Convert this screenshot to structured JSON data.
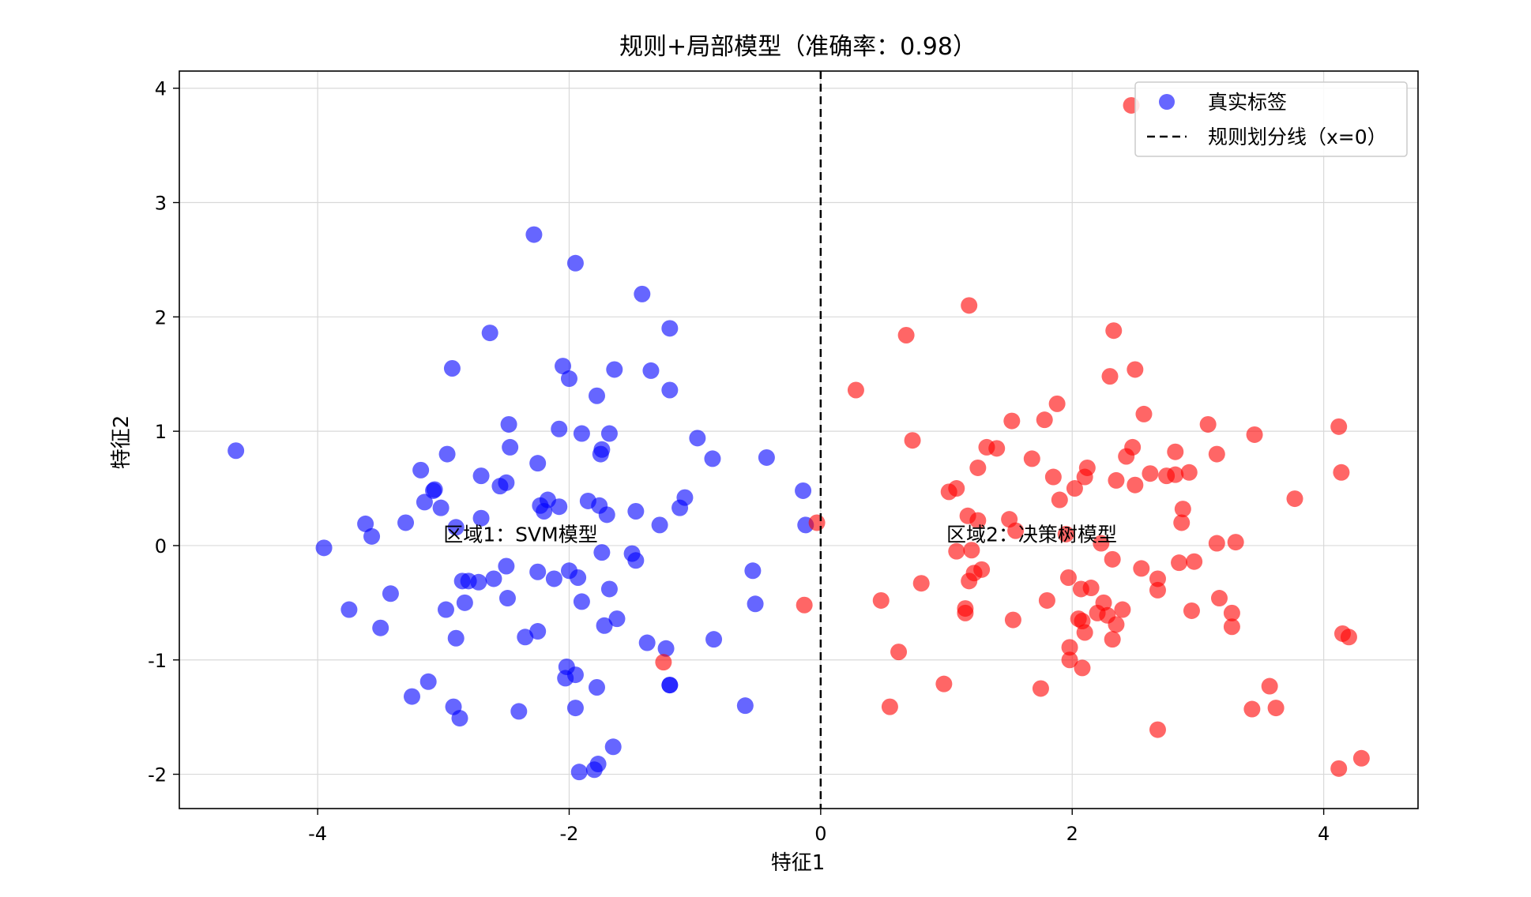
{
  "chart_data": {
    "type": "scatter",
    "title": "规则+局部模型（准确率：0.98）",
    "xlabel": "特征1",
    "ylabel": "特征2",
    "xlim": [
      -5.1,
      4.75
    ],
    "ylim": [
      -2.3,
      4.15
    ],
    "xticks": [
      -4,
      -2,
      0,
      2,
      4
    ],
    "yticks": [
      -2,
      -1,
      0,
      1,
      2,
      3,
      4
    ],
    "grid": true,
    "legend_position": "top-right",
    "legend": {
      "points_label": "真实标签",
      "line_label": "规则划分线（x=0）"
    },
    "rule_line": {
      "x": 0,
      "style": "dashed",
      "color": "#000000"
    },
    "annotations": [
      {
        "text": "区域1：SVM模型",
        "x": -3.0,
        "y": 0.05
      },
      {
        "text": "区域2：决策树模型",
        "x": 1.0,
        "y": 0.05
      }
    ],
    "colors": {
      "class_0": "#0000ff",
      "class_1": "#ff0000"
    },
    "series": [
      {
        "color": "#0000ff",
        "points": [
          [
            -4.65,
            0.83
          ],
          [
            -3.95,
            -0.02
          ],
          [
            -3.75,
            -0.56
          ],
          [
            -3.62,
            0.19
          ],
          [
            -3.57,
            0.08
          ],
          [
            -3.5,
            -0.72
          ],
          [
            -3.42,
            -0.42
          ],
          [
            -3.3,
            0.2
          ],
          [
            -3.25,
            -1.32
          ],
          [
            -3.18,
            0.66
          ],
          [
            -3.15,
            0.38
          ],
          [
            -3.12,
            -1.19
          ],
          [
            -3.08,
            0.48
          ],
          [
            -3.07,
            0.49
          ],
          [
            -3.02,
            0.33
          ],
          [
            -2.98,
            -0.56
          ],
          [
            -2.97,
            0.8
          ],
          [
            -2.93,
            1.55
          ],
          [
            -2.92,
            -1.41
          ],
          [
            -2.9,
            -0.81
          ],
          [
            -2.9,
            0.16
          ],
          [
            -2.87,
            -1.51
          ],
          [
            -2.85,
            -0.31
          ],
          [
            -2.83,
            -0.5
          ],
          [
            -2.8,
            -0.31
          ],
          [
            -2.72,
            -0.32
          ],
          [
            -2.7,
            0.24
          ],
          [
            -2.7,
            0.61
          ],
          [
            -2.63,
            1.86
          ],
          [
            -2.6,
            -0.29
          ],
          [
            -2.55,
            0.52
          ],
          [
            -2.5,
            0.55
          ],
          [
            -2.5,
            -0.18
          ],
          [
            -2.49,
            -0.46
          ],
          [
            -2.48,
            1.06
          ],
          [
            -2.47,
            0.86
          ],
          [
            -2.4,
            -1.45
          ],
          [
            -2.35,
            -0.8
          ],
          [
            -2.28,
            2.72
          ],
          [
            -2.25,
            -0.75
          ],
          [
            -2.25,
            -0.23
          ],
          [
            -2.25,
            0.72
          ],
          [
            -2.23,
            0.35
          ],
          [
            -2.2,
            0.3
          ],
          [
            -2.17,
            0.4
          ],
          [
            -2.12,
            -0.29
          ],
          [
            -2.08,
            1.02
          ],
          [
            -2.08,
            0.34
          ],
          [
            -2.05,
            1.57
          ],
          [
            -2.03,
            -1.16
          ],
          [
            -2.02,
            -1.06
          ],
          [
            -2.0,
            1.46
          ],
          [
            -2.0,
            -0.22
          ],
          [
            -1.95,
            -1.13
          ],
          [
            -1.95,
            2.47
          ],
          [
            -1.95,
            -1.42
          ],
          [
            -1.93,
            -0.28
          ],
          [
            -1.92,
            -1.98
          ],
          [
            -1.9,
            0.98
          ],
          [
            -1.9,
            -0.49
          ],
          [
            -1.85,
            0.39
          ],
          [
            -1.8,
            -1.96
          ],
          [
            -1.78,
            -1.24
          ],
          [
            -1.78,
            1.31
          ],
          [
            -1.77,
            -1.91
          ],
          [
            -1.76,
            0.35
          ],
          [
            -1.75,
            0.8
          ],
          [
            -1.74,
            0.84
          ],
          [
            -1.74,
            -0.06
          ],
          [
            -1.72,
            -0.7
          ],
          [
            -1.7,
            0.27
          ],
          [
            -1.68,
            -0.38
          ],
          [
            -1.68,
            0.98
          ],
          [
            -1.65,
            -1.76
          ],
          [
            -1.64,
            1.54
          ],
          [
            -1.62,
            -0.64
          ],
          [
            -1.5,
            -0.07
          ],
          [
            -1.47,
            -0.13
          ],
          [
            -1.47,
            0.3
          ],
          [
            -1.42,
            2.2
          ],
          [
            -1.38,
            -0.85
          ],
          [
            -1.35,
            1.53
          ],
          [
            -1.28,
            0.18
          ],
          [
            -1.23,
            -0.9
          ],
          [
            -1.2,
            1.36
          ],
          [
            -1.2,
            1.9
          ],
          [
            -1.2,
            -1.22
          ],
          [
            -1.2,
            -1.22
          ],
          [
            -1.12,
            0.33
          ],
          [
            -1.08,
            0.42
          ],
          [
            -0.98,
            0.94
          ],
          [
            -0.86,
            0.76
          ],
          [
            -0.85,
            -0.82
          ],
          [
            -0.6,
            -1.4
          ],
          [
            -0.54,
            -0.22
          ],
          [
            -0.52,
            -0.51
          ],
          [
            -0.43,
            0.77
          ],
          [
            -0.14,
            0.48
          ],
          [
            -0.12,
            0.18
          ]
        ]
      },
      {
        "color": "#ff0000",
        "points": [
          [
            -1.25,
            -1.02
          ],
          [
            -0.13,
            -0.52
          ],
          [
            -0.03,
            0.2
          ],
          [
            0.28,
            1.36
          ],
          [
            0.48,
            -0.48
          ],
          [
            0.55,
            -1.41
          ],
          [
            0.62,
            -0.93
          ],
          [
            0.68,
            1.84
          ],
          [
            0.73,
            0.92
          ],
          [
            0.8,
            -0.33
          ],
          [
            0.98,
            -1.21
          ],
          [
            1.02,
            0.47
          ],
          [
            1.08,
            0.5
          ],
          [
            1.08,
            -0.05
          ],
          [
            1.15,
            -0.55
          ],
          [
            1.15,
            -0.59
          ],
          [
            1.17,
            0.26
          ],
          [
            1.18,
            -0.31
          ],
          [
            1.18,
            2.1
          ],
          [
            1.2,
            -0.04
          ],
          [
            1.22,
            -0.24
          ],
          [
            1.25,
            0.22
          ],
          [
            1.25,
            0.68
          ],
          [
            1.28,
            -0.21
          ],
          [
            1.32,
            0.86
          ],
          [
            1.4,
            0.85
          ],
          [
            1.5,
            0.23
          ],
          [
            1.52,
            1.09
          ],
          [
            1.53,
            -0.65
          ],
          [
            1.55,
            0.13
          ],
          [
            1.68,
            0.76
          ],
          [
            1.75,
            -1.25
          ],
          [
            1.78,
            1.1
          ],
          [
            1.8,
            -0.48
          ],
          [
            1.85,
            0.6
          ],
          [
            1.88,
            1.24
          ],
          [
            1.9,
            0.4
          ],
          [
            1.95,
            0.1
          ],
          [
            1.97,
            -0.28
          ],
          [
            1.98,
            -0.89
          ],
          [
            1.98,
            -1.0
          ],
          [
            2.02,
            0.5
          ],
          [
            2.05,
            -0.64
          ],
          [
            2.07,
            -0.38
          ],
          [
            2.08,
            -0.66
          ],
          [
            2.08,
            -1.07
          ],
          [
            2.1,
            0.6
          ],
          [
            2.1,
            -0.76
          ],
          [
            2.12,
            0.68
          ],
          [
            2.15,
            -0.37
          ],
          [
            2.2,
            -0.59
          ],
          [
            2.23,
            0.02
          ],
          [
            2.25,
            -0.5
          ],
          [
            2.28,
            -0.61
          ],
          [
            2.3,
            1.48
          ],
          [
            2.32,
            -0.12
          ],
          [
            2.32,
            -0.82
          ],
          [
            2.33,
            1.88
          ],
          [
            2.35,
            -0.69
          ],
          [
            2.35,
            0.57
          ],
          [
            2.4,
            -0.56
          ],
          [
            2.43,
            0.78
          ],
          [
            2.47,
            3.85
          ],
          [
            2.48,
            0.86
          ],
          [
            2.5,
            0.53
          ],
          [
            2.5,
            1.54
          ],
          [
            2.55,
            -0.2
          ],
          [
            2.57,
            1.15
          ],
          [
            2.62,
            0.63
          ],
          [
            2.68,
            -0.29
          ],
          [
            2.68,
            -0.39
          ],
          [
            2.68,
            -1.61
          ],
          [
            2.75,
            0.61
          ],
          [
            2.82,
            0.62
          ],
          [
            2.82,
            0.82
          ],
          [
            2.85,
            -0.15
          ],
          [
            2.87,
            0.2
          ],
          [
            2.88,
            0.32
          ],
          [
            2.93,
            0.64
          ],
          [
            2.95,
            -0.57
          ],
          [
            2.97,
            -0.14
          ],
          [
            3.08,
            1.06
          ],
          [
            3.15,
            0.02
          ],
          [
            3.15,
            0.8
          ],
          [
            3.17,
            -0.46
          ],
          [
            3.27,
            -0.71
          ],
          [
            3.27,
            -0.59
          ],
          [
            3.3,
            0.03
          ],
          [
            3.43,
            -1.43
          ],
          [
            3.45,
            0.97
          ],
          [
            3.57,
            -1.23
          ],
          [
            3.62,
            -1.42
          ],
          [
            3.77,
            0.41
          ],
          [
            4.12,
            1.04
          ],
          [
            4.12,
            -1.95
          ],
          [
            4.14,
            0.64
          ],
          [
            4.15,
            -0.77
          ],
          [
            4.2,
            -0.8
          ],
          [
            4.3,
            -1.86
          ]
        ]
      }
    ]
  }
}
